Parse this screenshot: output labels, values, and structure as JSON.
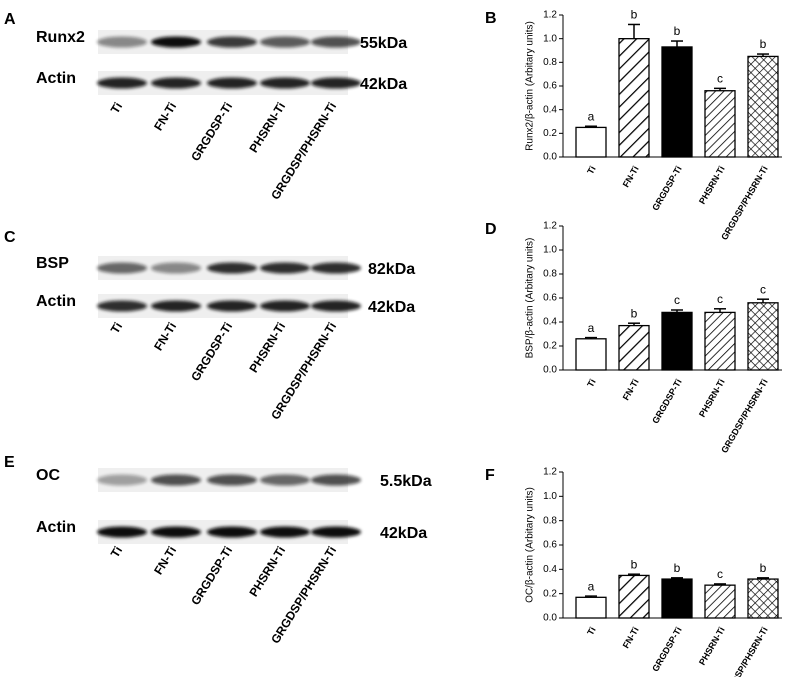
{
  "blots": [
    {
      "panel": "A",
      "rows": [
        {
          "protein": "Runx2",
          "size": "55kDa"
        },
        {
          "protein": "Actin",
          "size": "42kDa"
        }
      ],
      "lanes": [
        "Ti",
        "FN-Ti",
        "GRGDSP-Ti",
        "PHSRN-Ti",
        "GRGDSP/PHSRN-Ti"
      ]
    },
    {
      "panel": "C",
      "rows": [
        {
          "protein": "BSP",
          "size": "82kDa"
        },
        {
          "protein": "Actin",
          "size": "42kDa"
        }
      ],
      "lanes": [
        "Ti",
        "FN-Ti",
        "GRGDSP-Ti",
        "PHSRN-Ti",
        "GRGDSP/PHSRN-Ti"
      ]
    },
    {
      "panel": "E",
      "rows": [
        {
          "protein": "OC",
          "size": "5.5kDa"
        },
        {
          "protein": "Actin",
          "size": "42kDa"
        }
      ],
      "lanes": [
        "Ti",
        "FN-Ti",
        "GRGDSP-Ti",
        "PHSRN-Ti",
        "GRGDSP/PHSRN-Ti"
      ]
    }
  ],
  "chart_data": [
    {
      "type": "bar",
      "panel": "B",
      "ylabel": "Runx2/β-actin (Arbitary units)",
      "categories": [
        "Ti",
        "FN-Ti",
        "GRGDSP-Ti",
        "PHSRN-Ti",
        "GRGDSP/PHSRN-Ti"
      ],
      "values": [
        0.25,
        1.0,
        0.93,
        0.56,
        0.85
      ],
      "errors": [
        0.01,
        0.12,
        0.05,
        0.02,
        0.02
      ],
      "annotations": [
        "a",
        "b",
        "b",
        "c",
        "b"
      ],
      "fills": [
        "white",
        "wide-hatch",
        "black",
        "hatch",
        "crosshatch"
      ],
      "ylim": [
        0,
        1.2
      ],
      "yticks": [
        {
          "value": 0,
          "label": "0.0"
        },
        0.2,
        0.4,
        0.6,
        0.8,
        {
          "value": 1,
          "label": "1.0"
        },
        1.2
      ]
    },
    {
      "type": "bar",
      "panel": "D",
      "ylabel": "BSP/β-actin (Arbitary units)",
      "categories": [
        "Ti",
        "FN-Ti",
        "GRGDSP-Ti",
        "PHSRN-Ti",
        "GRGDSP/PHSRN-Ti"
      ],
      "values": [
        0.26,
        0.37,
        0.48,
        0.48,
        0.56
      ],
      "errors": [
        0.01,
        0.02,
        0.02,
        0.03,
        0.03
      ],
      "annotations": [
        "a",
        "b",
        "c",
        "c",
        "c"
      ],
      "fills": [
        "white",
        "wide-hatch",
        "black",
        "hatch",
        "crosshatch"
      ],
      "ylim": [
        0,
        1.2
      ],
      "yticks": [
        {
          "value": 0,
          "label": "0.0"
        },
        0.2,
        0.4,
        0.6,
        0.8,
        {
          "value": 1,
          "label": "1.0"
        },
        1.2
      ]
    },
    {
      "type": "bar",
      "panel": "F",
      "ylabel": "OC/β-actin (Arbitary units)",
      "categories": [
        "Ti",
        "FN-Ti",
        "GRGDSP-Ti",
        "PHSRN-Ti",
        "GRGDSP/PHSRN-Ti"
      ],
      "values": [
        0.17,
        0.35,
        0.32,
        0.27,
        0.32
      ],
      "errors": [
        0.01,
        0.01,
        0.01,
        0.01,
        0.01
      ],
      "annotations": [
        "a",
        "b",
        "b",
        "c",
        "b"
      ],
      "fills": [
        "white",
        "wide-hatch",
        "black",
        "hatch",
        "crosshatch"
      ],
      "ylim": [
        0,
        1.2
      ],
      "yticks": [
        {
          "value": 0,
          "label": "0.0"
        },
        0.2,
        0.4,
        0.6,
        0.8,
        {
          "value": 1,
          "label": "1.0"
        },
        1.2
      ]
    }
  ]
}
